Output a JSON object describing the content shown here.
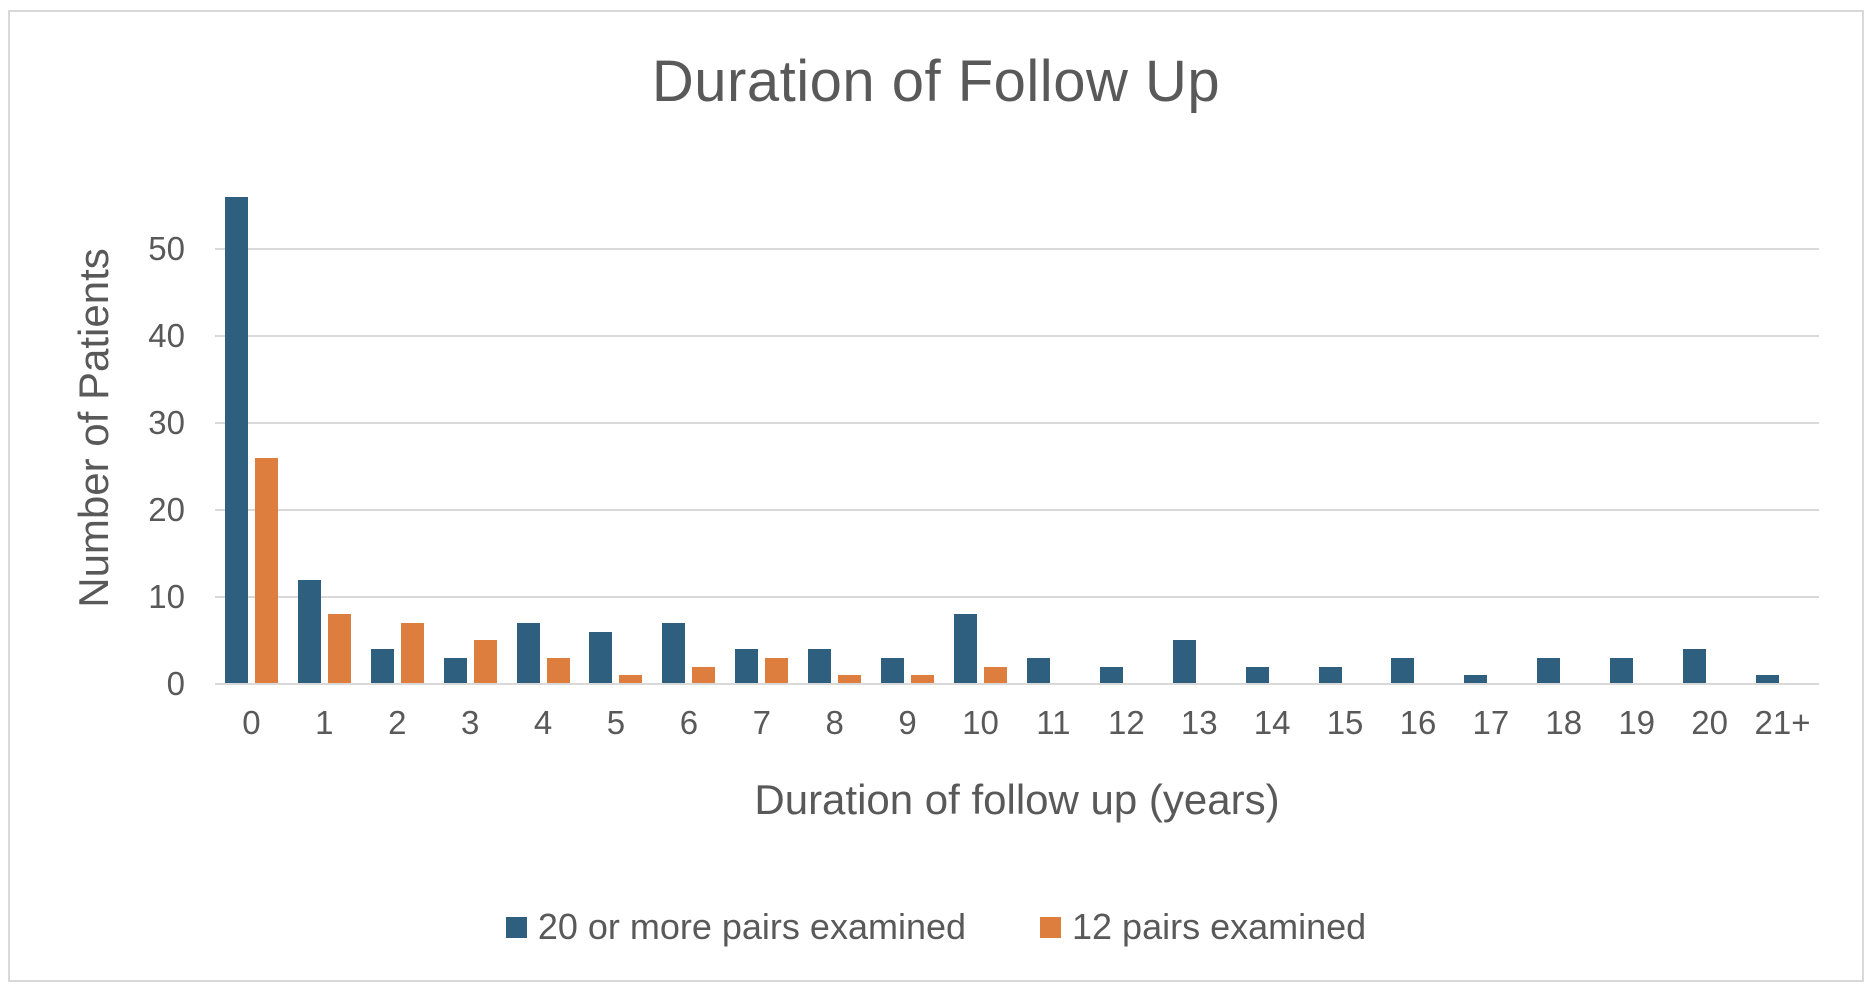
{
  "chart_data": {
    "type": "bar",
    "title": "Duration of Follow Up",
    "xlabel": "Duration of follow up (years)",
    "ylabel": "Number of Patients",
    "categories": [
      "0",
      "1",
      "2",
      "3",
      "4",
      "5",
      "6",
      "7",
      "8",
      "9",
      "10",
      "11",
      "12",
      "13",
      "14",
      "15",
      "16",
      "17",
      "18",
      "19",
      "20",
      "21+"
    ],
    "series": [
      {
        "name": "20 or more pairs examined",
        "color": "#2F5F7E",
        "values": [
          56,
          12,
          4,
          3,
          7,
          6,
          7,
          4,
          4,
          3,
          8,
          3,
          2,
          5,
          2,
          2,
          3,
          1,
          3,
          3,
          4,
          1
        ]
      },
      {
        "name": "12 pairs examined",
        "color": "#DD7E3E",
        "values": [
          26,
          8,
          7,
          5,
          3,
          1,
          2,
          3,
          1,
          1,
          2,
          0,
          0,
          0,
          0,
          0,
          0,
          0,
          0,
          0,
          0,
          0
        ]
      }
    ],
    "ylim": [
      0,
      60
    ],
    "yticks": [
      0,
      10,
      20,
      30,
      40,
      50
    ],
    "grid": "horizontal",
    "legend_position": "bottom"
  },
  "colors": {
    "text": "#595959",
    "gridline": "#D9D9D9",
    "frame_border": "#D9D9D9",
    "background": "#FFFFFF"
  }
}
